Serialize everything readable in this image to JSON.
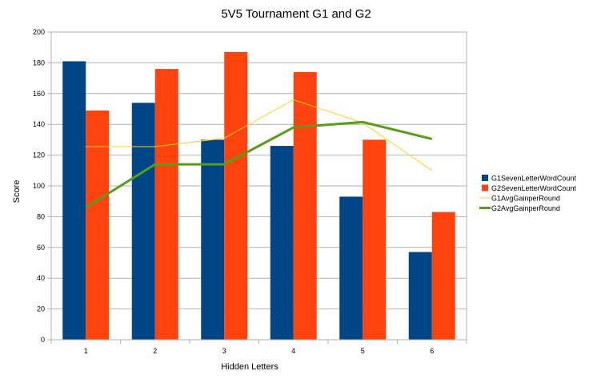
{
  "chart_data": {
    "type": "bar",
    "title": "5V5 Tournament G1 and G2",
    "xlabel": "Hidden Letters",
    "ylabel": "Score",
    "categories": [
      "1",
      "2",
      "3",
      "4",
      "5",
      "6"
    ],
    "ylim": [
      0,
      200
    ],
    "yticks": [
      0,
      20,
      40,
      60,
      80,
      100,
      120,
      140,
      160,
      180,
      200
    ],
    "grid": true,
    "legend_position": "right",
    "series": [
      {
        "name": "G1SevenLetterWordCount",
        "kind": "bar",
        "color": "#004586",
        "values": [
          181,
          154,
          130,
          126,
          93,
          57
        ]
      },
      {
        "name": "G2SevenLetterWordCount",
        "kind": "bar",
        "color": "#ff420e",
        "values": [
          149,
          176,
          187,
          174,
          130,
          83
        ]
      },
      {
        "name": "G1AvgGainperRound",
        "kind": "line",
        "color": "#ffd320",
        "values": [
          125.5,
          125.5,
          131,
          156,
          141,
          110
        ]
      },
      {
        "name": "G2AvgGainperRound",
        "kind": "line",
        "color": "#579d1c",
        "values": [
          86,
          114,
          114,
          138,
          141.5,
          130.5
        ]
      }
    ]
  }
}
